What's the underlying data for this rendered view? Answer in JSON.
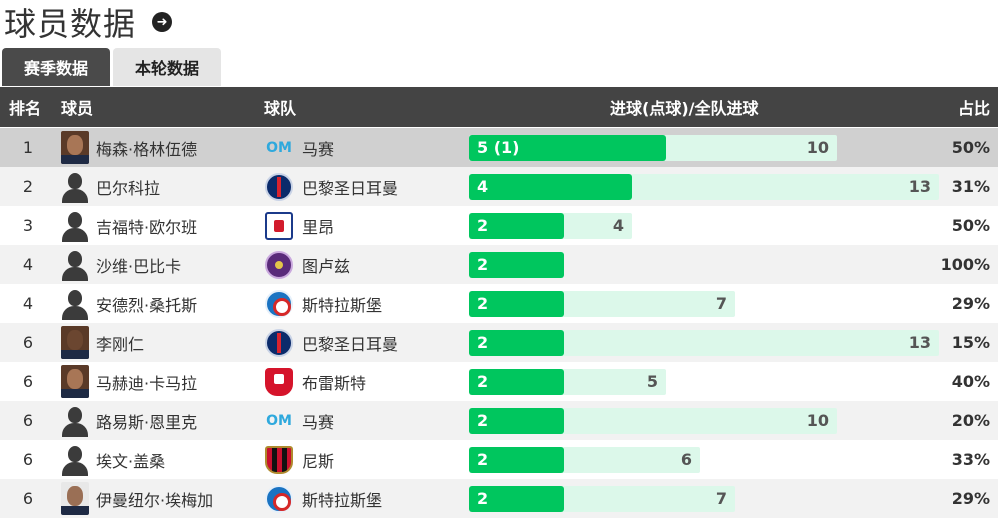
{
  "header": {
    "title": "球员数据"
  },
  "tabs": [
    {
      "label": "赛季数据",
      "active": true
    },
    {
      "label": "本轮数据",
      "active": false
    }
  ],
  "columns": {
    "rank": "排名",
    "player": "球员",
    "team": "球队",
    "goals": "进球(点球)/全队进球",
    "pct": "占比"
  },
  "colors": {
    "header_bg": "#444444",
    "goals_bar": "#00c65e",
    "team_goals_bar": "#dcf8ea",
    "highlight_row": "#d0d0d0"
  },
  "rows": [
    {
      "rank": "1",
      "player": "梅森·格林伍德",
      "team": "马赛",
      "goals_label": "5 (1)",
      "goals": 5,
      "team_goals": 10,
      "team_goals_label": "10",
      "pct": "50%"
    },
    {
      "rank": "2",
      "player": "巴尔科拉",
      "team": "巴黎圣日耳曼",
      "goals_label": "4",
      "goals": 4,
      "team_goals": 13,
      "team_goals_label": "13",
      "pct": "31%"
    },
    {
      "rank": "3",
      "player": "吉福特·欧尔班",
      "team": "里昂",
      "goals_label": "2",
      "goals": 2,
      "team_goals": 4,
      "team_goals_label": "4",
      "pct": "50%"
    },
    {
      "rank": "4",
      "player": "沙维·巴比卡",
      "team": "图卢兹",
      "goals_label": "2",
      "goals": 2,
      "team_goals": 2,
      "team_goals_label": "2",
      "pct": "100%"
    },
    {
      "rank": "4",
      "player": "安德烈·桑托斯",
      "team": "斯特拉斯堡",
      "goals_label": "2",
      "goals": 2,
      "team_goals": 7,
      "team_goals_label": "7",
      "pct": "29%"
    },
    {
      "rank": "6",
      "player": "李刚仁",
      "team": "巴黎圣日耳曼",
      "goals_label": "2",
      "goals": 2,
      "team_goals": 13,
      "team_goals_label": "13",
      "pct": "15%"
    },
    {
      "rank": "6",
      "player": "马赫迪·卡马拉",
      "team": "布雷斯特",
      "goals_label": "2",
      "goals": 2,
      "team_goals": 5,
      "team_goals_label": "5",
      "pct": "40%"
    },
    {
      "rank": "6",
      "player": "路易斯·恩里克",
      "team": "马赛",
      "goals_label": "2",
      "goals": 2,
      "team_goals": 10,
      "team_goals_label": "10",
      "pct": "20%"
    },
    {
      "rank": "6",
      "player": "埃文·盖桑",
      "team": "尼斯",
      "goals_label": "2",
      "goals": 2,
      "team_goals": 6,
      "team_goals_label": "6",
      "pct": "33%"
    },
    {
      "rank": "6",
      "player": "伊曼纽尔·埃梅加",
      "team": "斯特拉斯堡",
      "goals_label": "2",
      "goals": 2,
      "team_goals": 7,
      "team_goals_label": "7",
      "pct": "29%"
    }
  ]
}
